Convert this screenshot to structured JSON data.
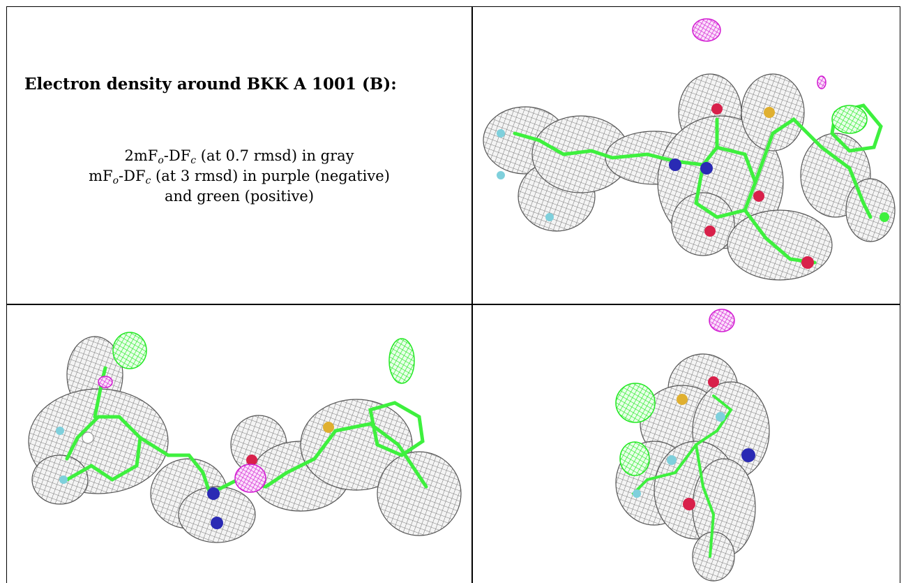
{
  "panel_text": {
    "title": "Electron density around BKK A 1001 (B):",
    "legend_line1_pre": "2mF",
    "legend_line1_sub1": "o",
    "legend_line1_mid": "-DF",
    "legend_line1_sub2": "c",
    "legend_line1_post": " (at 0.7 rmsd) in gray",
    "legend_line2_pre": "mF",
    "legend_line2_sub1": "o",
    "legend_line2_mid": "-DF",
    "legend_line2_sub2": "c",
    "legend_line2_post": " (at 3 rmsd) in purple (negative)",
    "legend_line3": "and green (positive)"
  },
  "colors": {
    "mesh_gray": "#8a8a8a",
    "negative_purple": "#d21bd2",
    "positive_green": "#22e822",
    "carbon_green": "#3ef03e",
    "nitrogen_blue": "#2a2ab4",
    "oxygen_red": "#d8204a",
    "fluorine_cyan": "#7fd0dc",
    "sulfur_yellow": "#e0b030"
  }
}
